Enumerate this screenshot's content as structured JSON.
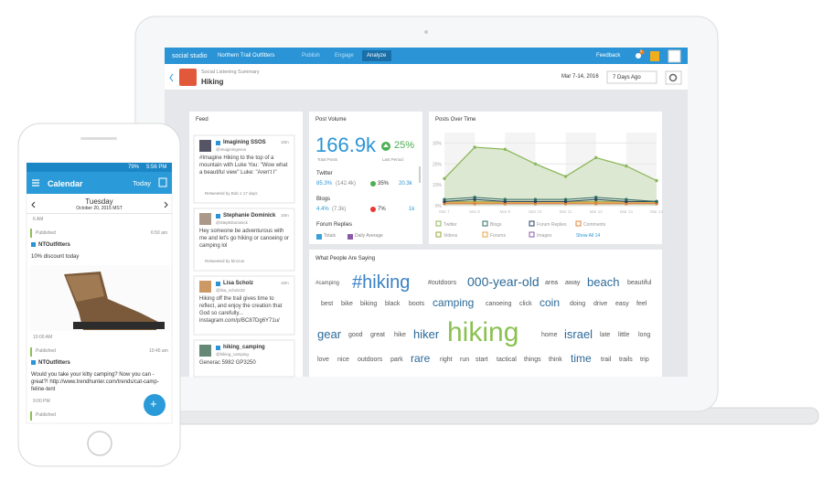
{
  "nav": {
    "brand": "social studio",
    "org": "Northern Trail Outfitters",
    "tabs": [
      "Publish",
      "Engage",
      "Analyze"
    ],
    "feedback": "Feedback",
    "badge": "2"
  },
  "header": {
    "subtitle": "Social Listening Summary",
    "title": "Hiking",
    "date_range": "Mar 7-14, 2016",
    "period": "7 Days Ago"
  },
  "feed": {
    "title": "Feed",
    "items": [
      {
        "name": "Imagining SSOS",
        "handle": "@imaginingssos",
        "time": "10m",
        "text": "#Imagine Hiking to the top of a mountain with Luke You: \"Wow what a beautiful view\" Luke: \"Aren't I\"",
        "meta": "Retweeted by Bob 1 17 days"
      },
      {
        "name": "Stephanie Dominick",
        "handle": "@StephDominick",
        "time": "10m",
        "text": "Hey someone be adventurous with me and let's go hiking or canoeing or camping lol",
        "meta": "Retweeted by bincrus"
      },
      {
        "name": "Lisa Scholz",
        "handle": "@lisa_scholz33",
        "time": "10m",
        "text": "Hiking off the trail gives time to reflect, and enjoy the creation that God so carefully... instagram.com/p/BC87Dg6Y71u/",
        "meta": ""
      },
      {
        "name": "hiking_camping",
        "handle": "@hiking_camping",
        "time": "",
        "text": "Generac 5982 GP3250",
        "meta": ""
      }
    ]
  },
  "post_volume": {
    "title": "Post Volume",
    "total": "166.9k",
    "change": "25%",
    "total_label": "Total Posts",
    "change_label": "Last Period",
    "rows": [
      {
        "name": "Twitter",
        "share": "85.3%",
        "count": "(142.4k)",
        "change": "35%",
        "avg": "20.3k"
      },
      {
        "name": "Blogs",
        "share": "4.4%",
        "count": "(7.3k)",
        "change": "7%",
        "avg": "1k"
      },
      {
        "name": "Forum Replies"
      }
    ],
    "legend": [
      "Totals",
      "Daily Average"
    ]
  },
  "posts_over_time": {
    "title": "Posts Over Time",
    "categories": [
      "Mar 7",
      "Mar 8",
      "Mar 9",
      "Mar 10",
      "Mar 11",
      "Mar 12",
      "Mar 13",
      "Mar 14"
    ],
    "ylim": [
      0,
      35
    ],
    "yticks": [
      {
        "value": 0,
        "label": "0%"
      },
      {
        "value": 10,
        "label": "10%"
      },
      {
        "value": 20,
        "label": "20%"
      },
      {
        "value": 30,
        "label": "30%"
      }
    ],
    "series": [
      {
        "name": "Twitter",
        "color": "#8cb85c",
        "values": [
          13,
          28,
          27,
          20,
          14,
          23,
          19,
          12
        ]
      },
      {
        "name": "Blogs",
        "color": "#2f6b62",
        "values": [
          3,
          4,
          3,
          3,
          3,
          4,
          3,
          2
        ]
      },
      {
        "name": "Forum Replies",
        "color": "#24405f",
        "values": [
          2,
          3,
          2,
          2,
          2,
          3,
          2,
          2
        ]
      },
      {
        "name": "Comments",
        "color": "#e0833a",
        "values": [
          1,
          1,
          1,
          1,
          1,
          1,
          1,
          1
        ]
      },
      {
        "name": "Videos",
        "color": "#9aa53a",
        "values": [
          2,
          2,
          2,
          2,
          2,
          2,
          2,
          2
        ]
      },
      {
        "name": "Forums",
        "color": "#e8a33c",
        "values": [
          1.5,
          1.5,
          1.5,
          1.5,
          1.5,
          1.5,
          1.5,
          1.5
        ]
      },
      {
        "name": "Images",
        "color": "#8a5aa8",
        "values": [
          1,
          1,
          1,
          1,
          1,
          1,
          1,
          1
        ]
      }
    ],
    "show_all": "Show All 14"
  },
  "word_cloud": {
    "title": "What People Are Saying",
    "words": [
      "#camping",
      "#hiking",
      "#outdoors",
      "000-year-old",
      "area",
      "away",
      "beach",
      "beautiful",
      "best",
      "bike",
      "biking",
      "black",
      "boots",
      "camping",
      "canoeing",
      "click",
      "coin",
      "doing",
      "drive",
      "easy",
      "feel",
      "gear",
      "good",
      "great",
      "hike",
      "hiker",
      "hiking",
      "home",
      "israel",
      "late",
      "little",
      "long",
      "love",
      "nice",
      "outdoors",
      "park",
      "rare",
      "right",
      "run",
      "start",
      "tactical",
      "things",
      "think",
      "time",
      "trail",
      "trails",
      "trip"
    ]
  },
  "phone": {
    "battery": "79%",
    "clock": "5:56 PM",
    "title": "Calendar",
    "today": "Today",
    "day": "Tuesday",
    "date": "October 20, 2015 MST",
    "slots": [
      {
        "time": "6 AM",
        "status": "Published",
        "posted": "6:50 am",
        "account": "NTOutfitters",
        "text": "10% discount today"
      },
      {
        "time": "10:00 AM",
        "status": "Published",
        "posted": "10:45 am",
        "account": "NTOutfitters",
        "text": "Would you take your kitty camping? Now you can - great?! http://www.trendhunter.com/trends/cat-camp-feline-tent"
      },
      {
        "time": "9:00 PM",
        "status": "Published"
      }
    ],
    "fab": "+"
  }
}
